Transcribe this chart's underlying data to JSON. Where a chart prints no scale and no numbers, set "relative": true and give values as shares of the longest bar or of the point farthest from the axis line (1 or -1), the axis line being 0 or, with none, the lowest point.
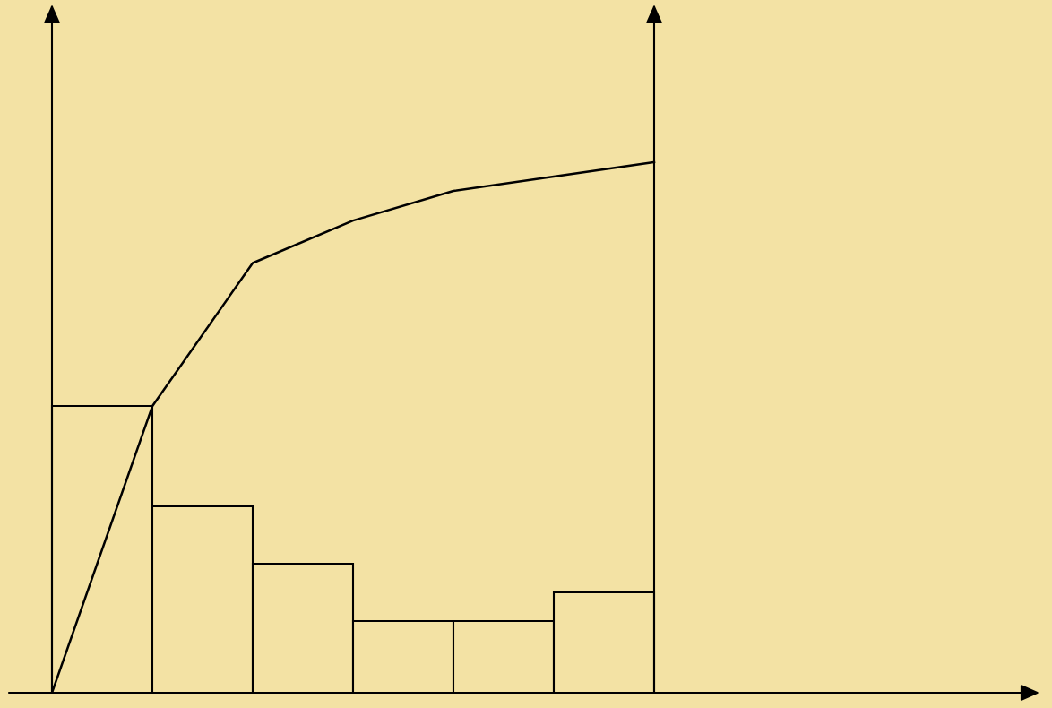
{
  "chart_data": [
    {
      "type": "bar",
      "relative": true,
      "categories": [
        null,
        null,
        null,
        null,
        null,
        null
      ],
      "series": [
        {
          "color": "#f3e2a4",
          "values": [
            1,
            0.65,
            0.45,
            0.25,
            0.25,
            0.35
          ]
        }
      ]
    },
    {
      "type": "line",
      "relative": true,
      "categories": [
        null,
        null,
        null,
        null,
        null,
        null,
        null
      ],
      "series": [
        {
          "color": "#000000",
          "values": [
            0,
            0.54,
            0.81,
            0.89,
            0.946,
            0.973,
            1
          ]
        }
      ]
    }
  ]
}
